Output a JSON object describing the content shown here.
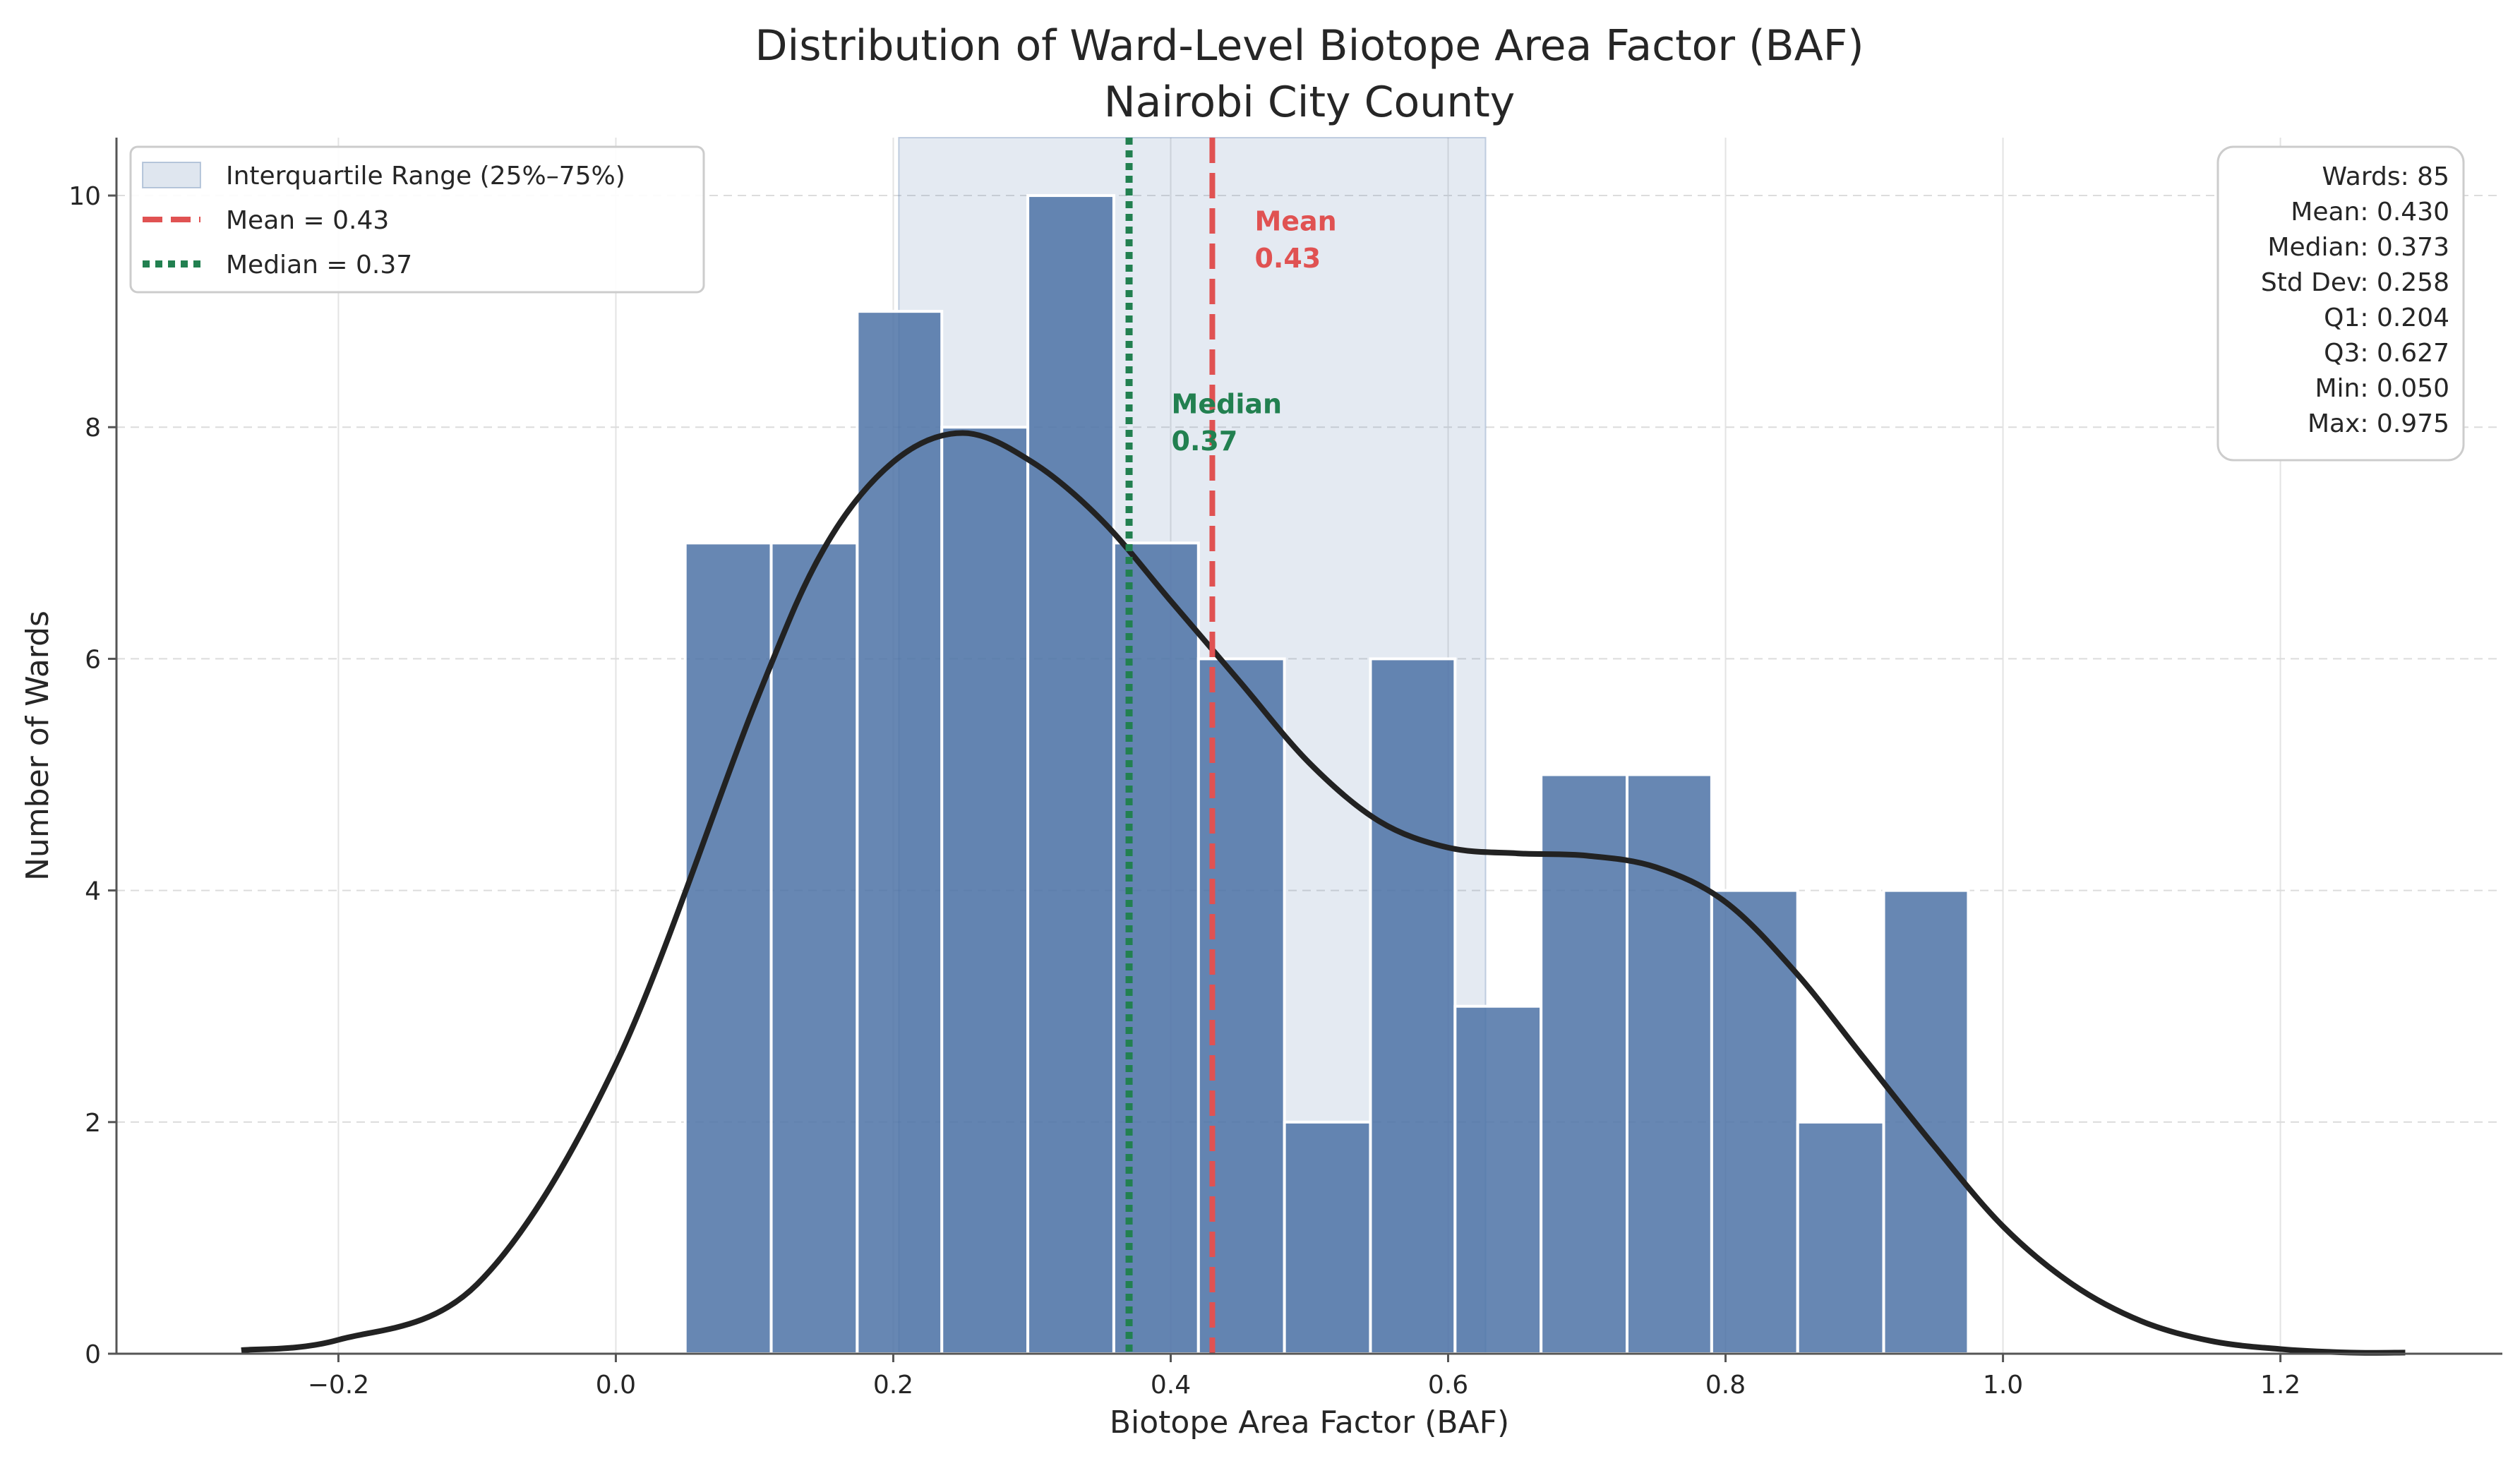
{
  "chart_data": {
    "type": "bar",
    "title": "Distribution of Ward-Level Biotope Area Factor (BAF)",
    "subtitle": "Nairobi City County",
    "xlabel": "Biotope Area Factor (BAF)",
    "ylabel": "Number of Wards",
    "xlim": [
      -0.36,
      1.36
    ],
    "ylim": [
      0,
      10.5
    ],
    "xticks": [
      -0.2,
      0.0,
      0.2,
      0.4,
      0.6,
      0.8,
      1.0,
      1.2
    ],
    "xtick_labels": [
      "−0.2",
      "0.0",
      "0.2",
      "0.4",
      "0.6",
      "0.8",
      "1.0",
      "1.2"
    ],
    "yticks": [
      0,
      2,
      4,
      6,
      8,
      10
    ],
    "ytick_labels": [
      "0",
      "2",
      "4",
      "6",
      "8",
      "10"
    ],
    "grid": true,
    "bins": {
      "edges": [
        0.05,
        0.112,
        0.174,
        0.235,
        0.297,
        0.359,
        0.42,
        0.482,
        0.544,
        0.605,
        0.667,
        0.729,
        0.79,
        0.852,
        0.914,
        0.975
      ],
      "counts": [
        7,
        7,
        9,
        8,
        10,
        7,
        6,
        2,
        6,
        3,
        5,
        5,
        4,
        2,
        4
      ],
      "color": "#4c72a6"
    },
    "kde": {
      "color": "#222222",
      "x": [
        -0.27,
        -0.2,
        -0.1,
        0.0,
        0.1,
        0.15,
        0.2,
        0.25,
        0.3,
        0.35,
        0.4,
        0.45,
        0.5,
        0.55,
        0.6,
        0.65,
        0.7,
        0.75,
        0.8,
        0.85,
        0.9,
        0.95,
        1.0,
        1.05,
        1.1,
        1.15,
        1.2,
        1.25,
        1.29
      ],
      "y": [
        0.03,
        0.12,
        0.6,
        2.5,
        5.6,
        6.95,
        7.7,
        7.95,
        7.7,
        7.2,
        6.5,
        5.8,
        5.1,
        4.6,
        4.37,
        4.32,
        4.3,
        4.2,
        3.9,
        3.3,
        2.55,
        1.8,
        1.1,
        0.6,
        0.28,
        0.11,
        0.04,
        0.01,
        0.01
      ]
    },
    "iqr": {
      "q1": 0.204,
      "q3": 0.627,
      "color": "#4c72a6"
    },
    "mean_line": {
      "value": 0.43,
      "color": "#e05252",
      "label": "Mean",
      "value_label": "0.43"
    },
    "median_line": {
      "value": 0.37,
      "color": "#228050",
      "label": "Median",
      "value_label": "0.37"
    },
    "legend": {
      "position": "top-left",
      "entries": [
        "Interquartile Range (25%–75%)",
        "Mean = 0.43",
        "Median = 0.37"
      ]
    },
    "stats_box": {
      "position": "top-right",
      "lines": [
        "Wards: 85",
        "Mean: 0.430",
        "Median: 0.373",
        "Std Dev: 0.258",
        "Q1: 0.204",
        "Q3: 0.627",
        "Min: 0.050",
        "Max: 0.975"
      ]
    }
  }
}
